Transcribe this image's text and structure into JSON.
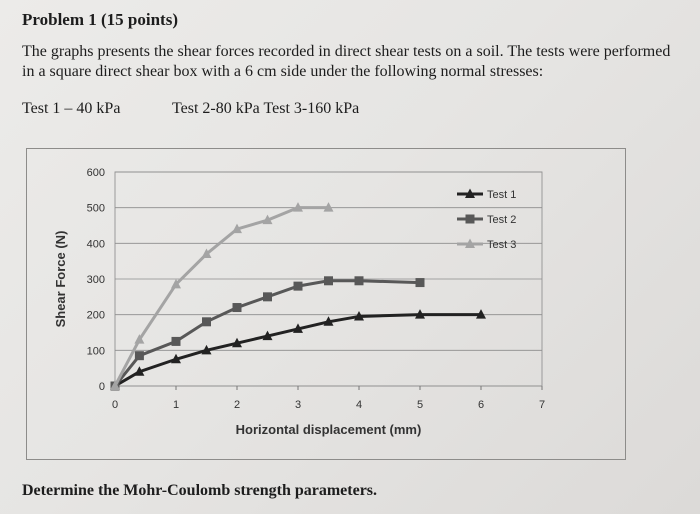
{
  "problem_title": "Problem 1 (15 points)",
  "intro_text": "The graphs presents the shear forces recorded in direct shear tests on a soil. The tests were performed in a square direct shear box with a 6 cm side under the following normal stresses:",
  "tests_line": {
    "test1": "Test 1 – 40 kPa",
    "test2_3": "Test 2-80 kPa Test 3-160 kPa"
  },
  "question": "Determine the Mohr-Coulomb strength parameters.",
  "chart_data": {
    "type": "line",
    "xlabel": "Horizontal displacement (mm)",
    "ylabel": "Shear Force (N)",
    "xlim": [
      0,
      7
    ],
    "ylim": [
      0,
      600
    ],
    "xticks": [
      0,
      1,
      2,
      3,
      4,
      5,
      6,
      7
    ],
    "yticks": [
      0,
      100,
      200,
      300,
      400,
      500,
      600
    ],
    "grid": "horizontal",
    "legend_position": "top-right",
    "series": [
      {
        "name": "Test 1",
        "marker": "triangle",
        "color": "#222222",
        "x": [
          0,
          0.4,
          1,
          1.5,
          2,
          2.5,
          3,
          3.5,
          4,
          5,
          6
        ],
        "y": [
          0,
          40,
          75,
          100,
          120,
          140,
          160,
          180,
          195,
          200,
          200
        ]
      },
      {
        "name": "Test 2",
        "marker": "square",
        "color": "#585858",
        "x": [
          0,
          0.4,
          1,
          1.5,
          2,
          2.5,
          3,
          3.5,
          4,
          5
        ],
        "y": [
          0,
          85,
          125,
          180,
          220,
          250,
          280,
          295,
          295,
          290
        ]
      },
      {
        "name": "Test 3",
        "marker": "triangle",
        "color": "#a4a4a4",
        "x": [
          0,
          0.4,
          1,
          1.5,
          2,
          2.5,
          3,
          3.5
        ],
        "y": [
          0,
          130,
          285,
          370,
          440,
          465,
          500,
          500
        ]
      }
    ]
  }
}
